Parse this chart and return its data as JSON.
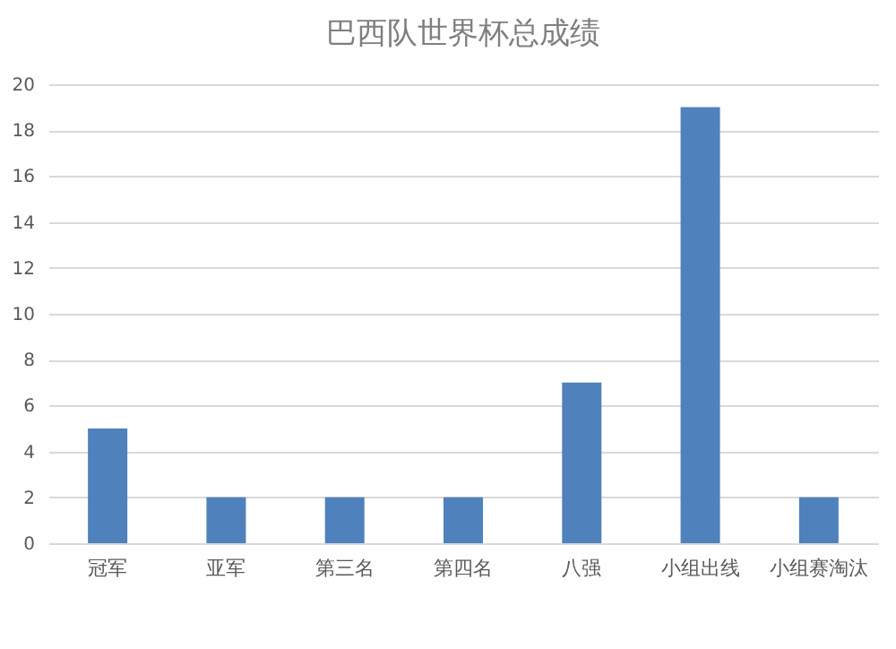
{
  "chart_data": {
    "type": "bar",
    "title": "巴西队世界杯总成绩",
    "categories": [
      "冠军",
      "亚军",
      "第三名",
      "第四名",
      "八强",
      "小组出线",
      "小组赛淘汰"
    ],
    "values": [
      5,
      2,
      2,
      2,
      7,
      19,
      2
    ],
    "color": "#4f81bd",
    "ylim": [
      0,
      20
    ],
    "yticks": [
      0,
      2,
      4,
      6,
      8,
      10,
      12,
      14,
      16,
      18,
      20
    ],
    "grid": "y"
  }
}
